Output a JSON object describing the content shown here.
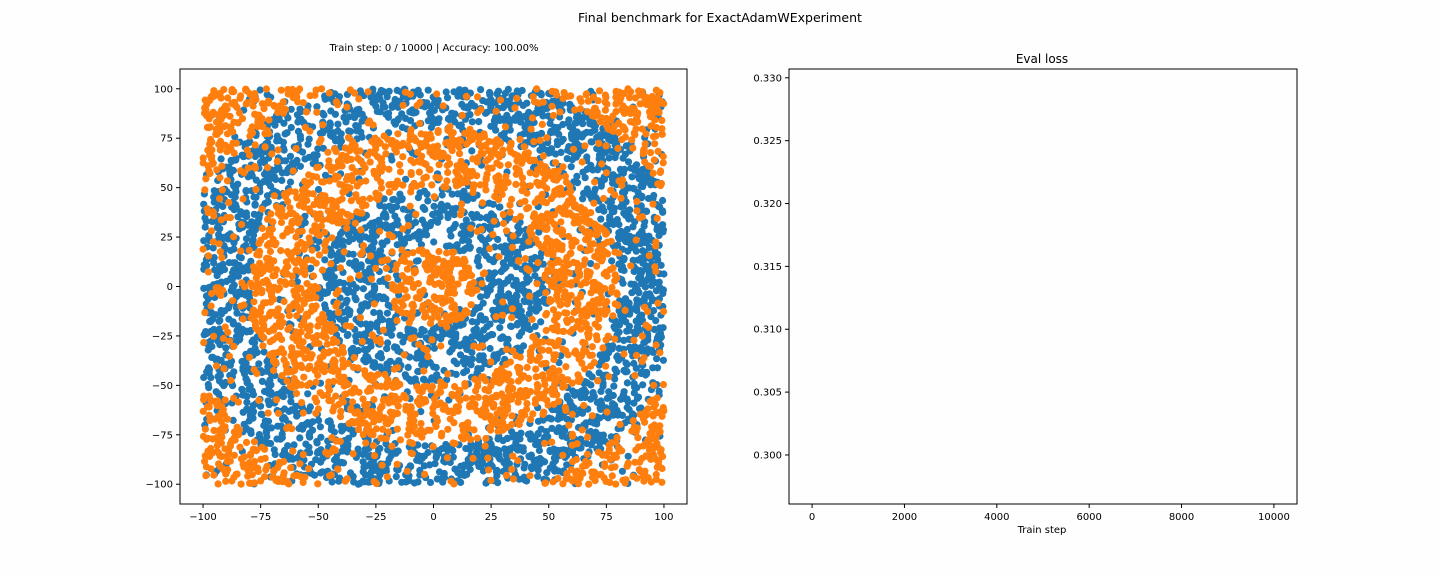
{
  "figure": {
    "suptitle": "Final benchmark for ExactAdamWExperiment"
  },
  "colors": {
    "series_blue": "#1f77b4",
    "series_orange": "#ff7f0e",
    "axes": "#000000",
    "background": "#fefefe"
  },
  "chart_data": [
    {
      "type": "scatter",
      "title": "Train step: 0 / 10000 | Accuracy: 100.00%",
      "xlabel": "",
      "ylabel": "",
      "xlim": [
        -110,
        110
      ],
      "ylim": [
        -110,
        110
      ],
      "xticks": [
        -100,
        -75,
        -50,
        -25,
        0,
        25,
        50,
        75,
        100
      ],
      "yticks": [
        -100,
        -75,
        -50,
        -25,
        0,
        25,
        50,
        75,
        100
      ],
      "grid": false,
      "legend": "none",
      "x_range": [
        -100,
        100
      ],
      "y_range": [
        -100,
        100
      ],
      "pattern": "concentric rings centered near (0, 0), alternating class bands with radius period ~30",
      "series": [
        {
          "color": "#1f77b4",
          "approx_points": 2600
        },
        {
          "color": "#ff7f0e",
          "approx_points": 3400
        }
      ]
    },
    {
      "type": "line",
      "title": "Eval loss",
      "xlabel": "Train step",
      "ylabel": "",
      "xlim": [
        -500,
        10500
      ],
      "ylim": [
        0.2961,
        0.3307
      ],
      "xticks": [
        0,
        2000,
        4000,
        6000,
        8000,
        10000
      ],
      "yticks": [
        0.3,
        0.305,
        0.31,
        0.315,
        0.32,
        0.325,
        0.33
      ],
      "ytick_labels": [
        "0.300",
        "0.305",
        "0.310",
        "0.315",
        "0.320",
        "0.325",
        "0.330"
      ],
      "grid": false,
      "legend": "none",
      "series": []
    }
  ]
}
